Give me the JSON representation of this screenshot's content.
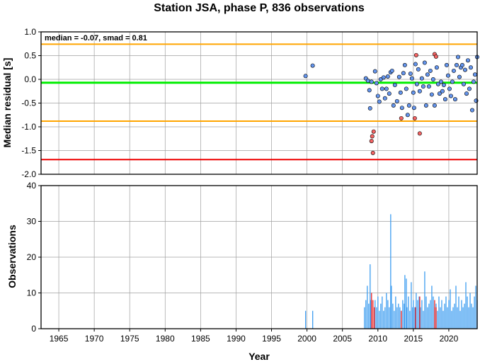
{
  "chart_data": [
    {
      "type": "scatter",
      "title": "Station JSA, phase P, 836 observations",
      "ylabel": "Median residual [s]",
      "xlim": [
        1962.5,
        2024
      ],
      "ylim": [
        -2.0,
        1.0
      ],
      "yticks": [
        "1.0",
        "0.5",
        "0.0",
        "-0.5",
        "-1.0",
        "-1.5",
        "-2.0"
      ],
      "grid": true,
      "annotation": "median = -0.07, smad = 0.81",
      "reference_lines": [
        {
          "y": 0.74,
          "color": "#ffa500"
        },
        {
          "y": -0.07,
          "color": "#00ee00"
        },
        {
          "y": -0.88,
          "color": "#ffa500"
        },
        {
          "y": -1.69,
          "color": "#ee0000"
        }
      ],
      "series": [
        {
          "color": "#6495ed",
          "points": [
            [
              1999.8,
              0.07
            ],
            [
              2000.8,
              0.29
            ],
            [
              2008.3,
              0.02
            ],
            [
              2008.6,
              -0.03
            ],
            [
              2008.8,
              -0.23
            ],
            [
              2008.9,
              -0.61
            ],
            [
              2009.1,
              -0.05
            ],
            [
              2009.6,
              0.17
            ],
            [
              2009.8,
              -0.08
            ],
            [
              2010.0,
              -0.35
            ],
            [
              2010.2,
              -0.47
            ],
            [
              2010.4,
              0.0
            ],
            [
              2010.6,
              -0.2
            ],
            [
              2010.8,
              0.04
            ],
            [
              2011.0,
              -0.4
            ],
            [
              2011.2,
              -0.2
            ],
            [
              2011.4,
              0.06
            ],
            [
              2011.6,
              -0.3
            ],
            [
              2011.8,
              0.15
            ],
            [
              2012.0,
              0.18
            ],
            [
              2012.2,
              -0.55
            ],
            [
              2012.4,
              -0.12
            ],
            [
              2012.7,
              -0.46
            ],
            [
              2013.0,
              0.05
            ],
            [
              2013.2,
              -0.28
            ],
            [
              2013.4,
              -0.6
            ],
            [
              2013.6,
              0.13
            ],
            [
              2013.8,
              0.3
            ],
            [
              2014.0,
              -0.2
            ],
            [
              2014.2,
              -0.75
            ],
            [
              2014.4,
              -0.55
            ],
            [
              2014.6,
              0.12
            ],
            [
              2014.8,
              0.02
            ],
            [
              2015.0,
              -0.28
            ],
            [
              2015.1,
              -0.6
            ],
            [
              2015.3,
              0.32
            ],
            [
              2015.5,
              -0.1
            ],
            [
              2015.7,
              0.21
            ],
            [
              2015.9,
              -0.25
            ],
            [
              2016.2,
              0.02
            ],
            [
              2016.4,
              -0.15
            ],
            [
              2016.6,
              0.35
            ],
            [
              2016.8,
              -0.55
            ],
            [
              2017.0,
              0.1
            ],
            [
              2017.2,
              -0.15
            ],
            [
              2017.4,
              0.18
            ],
            [
              2017.6,
              -0.32
            ],
            [
              2017.8,
              0.0
            ],
            [
              2018.0,
              -0.55
            ],
            [
              2018.3,
              0.25
            ],
            [
              2018.5,
              -0.1
            ],
            [
              2018.7,
              -0.3
            ],
            [
              2018.9,
              -0.05
            ],
            [
              2019.1,
              -0.25
            ],
            [
              2019.3,
              -0.12
            ],
            [
              2019.5,
              -0.42
            ],
            [
              2019.7,
              0.3
            ],
            [
              2019.9,
              0.08
            ],
            [
              2020.1,
              -0.2
            ],
            [
              2020.3,
              -0.35
            ],
            [
              2020.5,
              -0.05
            ],
            [
              2020.7,
              0.18
            ],
            [
              2020.9,
              -0.42
            ],
            [
              2021.1,
              0.3
            ],
            [
              2021.3,
              0.47
            ],
            [
              2021.5,
              0.05
            ],
            [
              2021.7,
              0.25
            ],
            [
              2021.9,
              0.3
            ],
            [
              2022.1,
              -0.1
            ],
            [
              2022.3,
              0.2
            ],
            [
              2022.5,
              -0.3
            ],
            [
              2022.7,
              0.4
            ],
            [
              2022.9,
              -0.2
            ],
            [
              2023.1,
              0.25
            ],
            [
              2023.3,
              -0.65
            ],
            [
              2023.5,
              -0.05
            ],
            [
              2023.7,
              0.1
            ],
            [
              2023.85,
              -0.45
            ],
            [
              2024.0,
              0.47
            ]
          ]
        },
        {
          "color": "#f46464",
          "points": [
            [
              2009.1,
              -1.3
            ],
            [
              2009.2,
              -1.2
            ],
            [
              2009.3,
              -1.55
            ],
            [
              2009.4,
              -1.1
            ],
            [
              2013.3,
              -0.82
            ],
            [
              2015.2,
              -0.82
            ],
            [
              2015.4,
              0.51
            ],
            [
              2015.9,
              -1.14
            ],
            [
              2018.0,
              0.53
            ],
            [
              2018.2,
              0.48
            ]
          ]
        }
      ]
    },
    {
      "type": "bar",
      "xlabel": "Year",
      "ylabel": "Observations",
      "xlim": [
        1962.5,
        2024
      ],
      "ylim": [
        0,
        40
      ],
      "yticks": [
        "40",
        "30",
        "20",
        "10",
        "0"
      ],
      "xticks": [
        "1965",
        "1970",
        "1975",
        "1980",
        "1985",
        "1990",
        "1995",
        "2000",
        "2005",
        "2010",
        "2015",
        "2020"
      ],
      "grid": true,
      "series": [
        {
          "color": "#3d9df0",
          "bars": [
            [
              1999.8,
              5
            ],
            [
              2000.8,
              5
            ],
            [
              2008.1,
              6
            ],
            [
              2008.3,
              8
            ],
            [
              2008.5,
              12
            ],
            [
              2008.7,
              7
            ],
            [
              2008.9,
              18
            ],
            [
              2009.0,
              8
            ],
            [
              2009.6,
              8
            ],
            [
              2009.8,
              6
            ],
            [
              2010.0,
              9
            ],
            [
              2010.2,
              5
            ],
            [
              2010.4,
              7
            ],
            [
              2010.6,
              9
            ],
            [
              2010.8,
              5
            ],
            [
              2011.0,
              6
            ],
            [
              2011.2,
              10
            ],
            [
              2011.4,
              8
            ],
            [
              2011.6,
              6
            ],
            [
              2011.8,
              32
            ],
            [
              2011.9,
              12
            ],
            [
              2012.1,
              7
            ],
            [
              2012.3,
              5
            ],
            [
              2012.5,
              9
            ],
            [
              2012.7,
              6
            ],
            [
              2012.9,
              7
            ],
            [
              2013.1,
              6
            ],
            [
              2013.3,
              5
            ],
            [
              2013.5,
              8
            ],
            [
              2013.7,
              7
            ],
            [
              2013.8,
              15
            ],
            [
              2014.0,
              14
            ],
            [
              2014.1,
              6
            ],
            [
              2014.3,
              9
            ],
            [
              2014.5,
              5
            ],
            [
              2014.7,
              13
            ],
            [
              2014.9,
              6
            ],
            [
              2015.0,
              8
            ],
            [
              2015.2,
              6
            ],
            [
              2015.4,
              10
            ],
            [
              2015.6,
              8
            ],
            [
              2015.8,
              9
            ],
            [
              2016.0,
              6
            ],
            [
              2016.2,
              8
            ],
            [
              2016.4,
              5
            ],
            [
              2016.6,
              16
            ],
            [
              2016.8,
              9
            ],
            [
              2017.0,
              6
            ],
            [
              2017.2,
              7
            ],
            [
              2017.4,
              8
            ],
            [
              2017.6,
              12
            ],
            [
              2017.8,
              9
            ],
            [
              2018.0,
              6
            ],
            [
              2018.2,
              7
            ],
            [
              2018.4,
              5
            ],
            [
              2018.6,
              9
            ],
            [
              2018.8,
              6
            ],
            [
              2019.0,
              8
            ],
            [
              2019.2,
              5
            ],
            [
              2019.4,
              7
            ],
            [
              2019.6,
              9
            ],
            [
              2019.8,
              6
            ],
            [
              2020.0,
              8
            ],
            [
              2020.2,
              11
            ],
            [
              2020.4,
              5
            ],
            [
              2020.6,
              6
            ],
            [
              2020.8,
              7
            ],
            [
              2021.0,
              12
            ],
            [
              2021.2,
              6
            ],
            [
              2021.4,
              9
            ],
            [
              2021.6,
              5
            ],
            [
              2021.8,
              8
            ],
            [
              2022.0,
              6
            ],
            [
              2022.2,
              7
            ],
            [
              2022.4,
              13
            ],
            [
              2022.6,
              9
            ],
            [
              2022.8,
              6
            ],
            [
              2023.0,
              10
            ],
            [
              2023.2,
              7
            ],
            [
              2023.4,
              6
            ],
            [
              2023.6,
              9
            ],
            [
              2023.8,
              12
            ],
            [
              2024.0,
              8
            ]
          ]
        },
        {
          "color": "#ee2222",
          "bars": [
            [
              2009.1,
              10
            ],
            [
              2009.3,
              8
            ],
            [
              2009.5,
              6
            ],
            [
              2013.3,
              5
            ],
            [
              2015.3,
              6
            ],
            [
              2015.9,
              9
            ],
            [
              2018.0,
              8
            ],
            [
              2018.2,
              6
            ]
          ]
        }
      ]
    }
  ]
}
